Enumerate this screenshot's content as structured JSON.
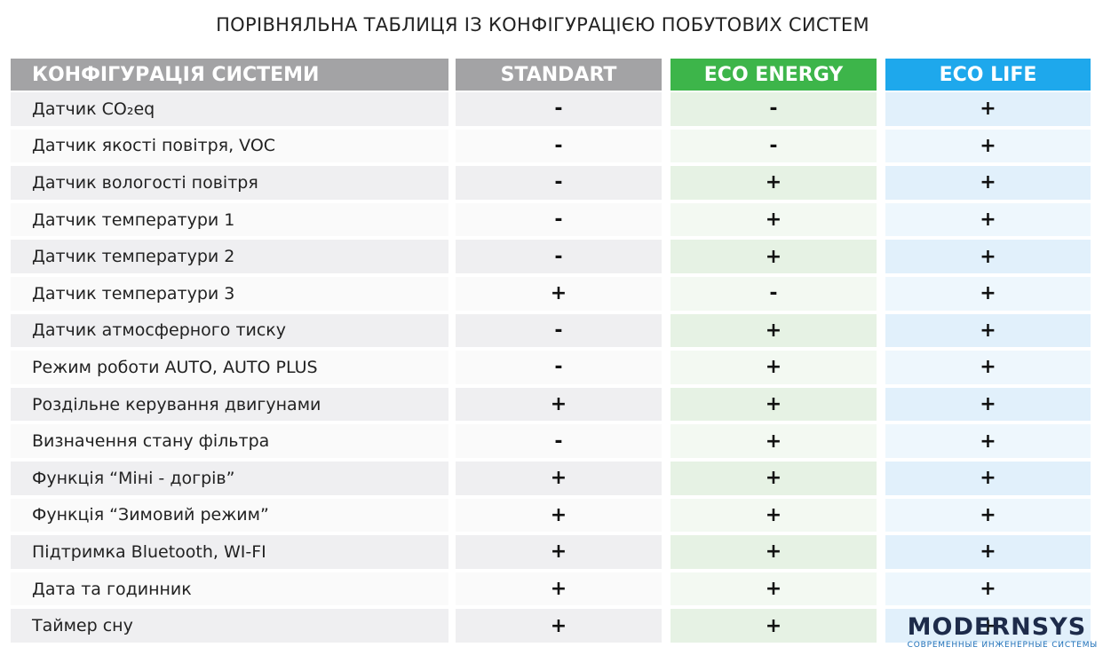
{
  "title": "ПОРІВНЯЛЬНА ТАБЛИЦЯ ІЗ КОНФІГУРАЦІЄЮ ПОБУТОВИХ СИСТЕМ",
  "table": {
    "headers": [
      "КОНФІГУРАЦІЯ СИСТЕМИ",
      "STANDART",
      "ECO ENERGY",
      "ECO LIFE"
    ],
    "rows": [
      [
        "Датчик CO₂eq",
        "-",
        "-",
        "+"
      ],
      [
        "Датчик якості повітря, VOC",
        "-",
        "-",
        "+"
      ],
      [
        "Датчик вологості повітря",
        "-",
        "+",
        "+"
      ],
      [
        "Датчик температури 1",
        "-",
        "+",
        "+"
      ],
      [
        "Датчик температури 2",
        "-",
        "+",
        "+"
      ],
      [
        "Датчик температури 3",
        "+",
        "-",
        "+"
      ],
      [
        "Датчик атмосферного тиску",
        "-",
        "+",
        "+"
      ],
      [
        "Режим роботи AUTO, AUTO PLUS",
        "-",
        "+",
        "+"
      ],
      [
        "Роздільне керування двигунами",
        "+",
        "+",
        "+"
      ],
      [
        "Визначення стану фільтра",
        "-",
        "+",
        "+"
      ],
      [
        "Функція “Міні - догрів”",
        "+",
        "+",
        "+"
      ],
      [
        "Функція “Зимовий режим”",
        "+",
        "+",
        "+"
      ],
      [
        "Підтримка Bluetooth, WI-FI",
        "+",
        "+",
        "+"
      ],
      [
        "Дата та годинник",
        "+",
        "+",
        "+"
      ],
      [
        "Таймер сну",
        "+",
        "+",
        "+"
      ]
    ]
  },
  "logo": {
    "name": "MODERNSYS",
    "tagline": "СОВРЕМЕННЫЕ ИНЖЕНЕРНЫЕ СИСТЕМЫ"
  }
}
